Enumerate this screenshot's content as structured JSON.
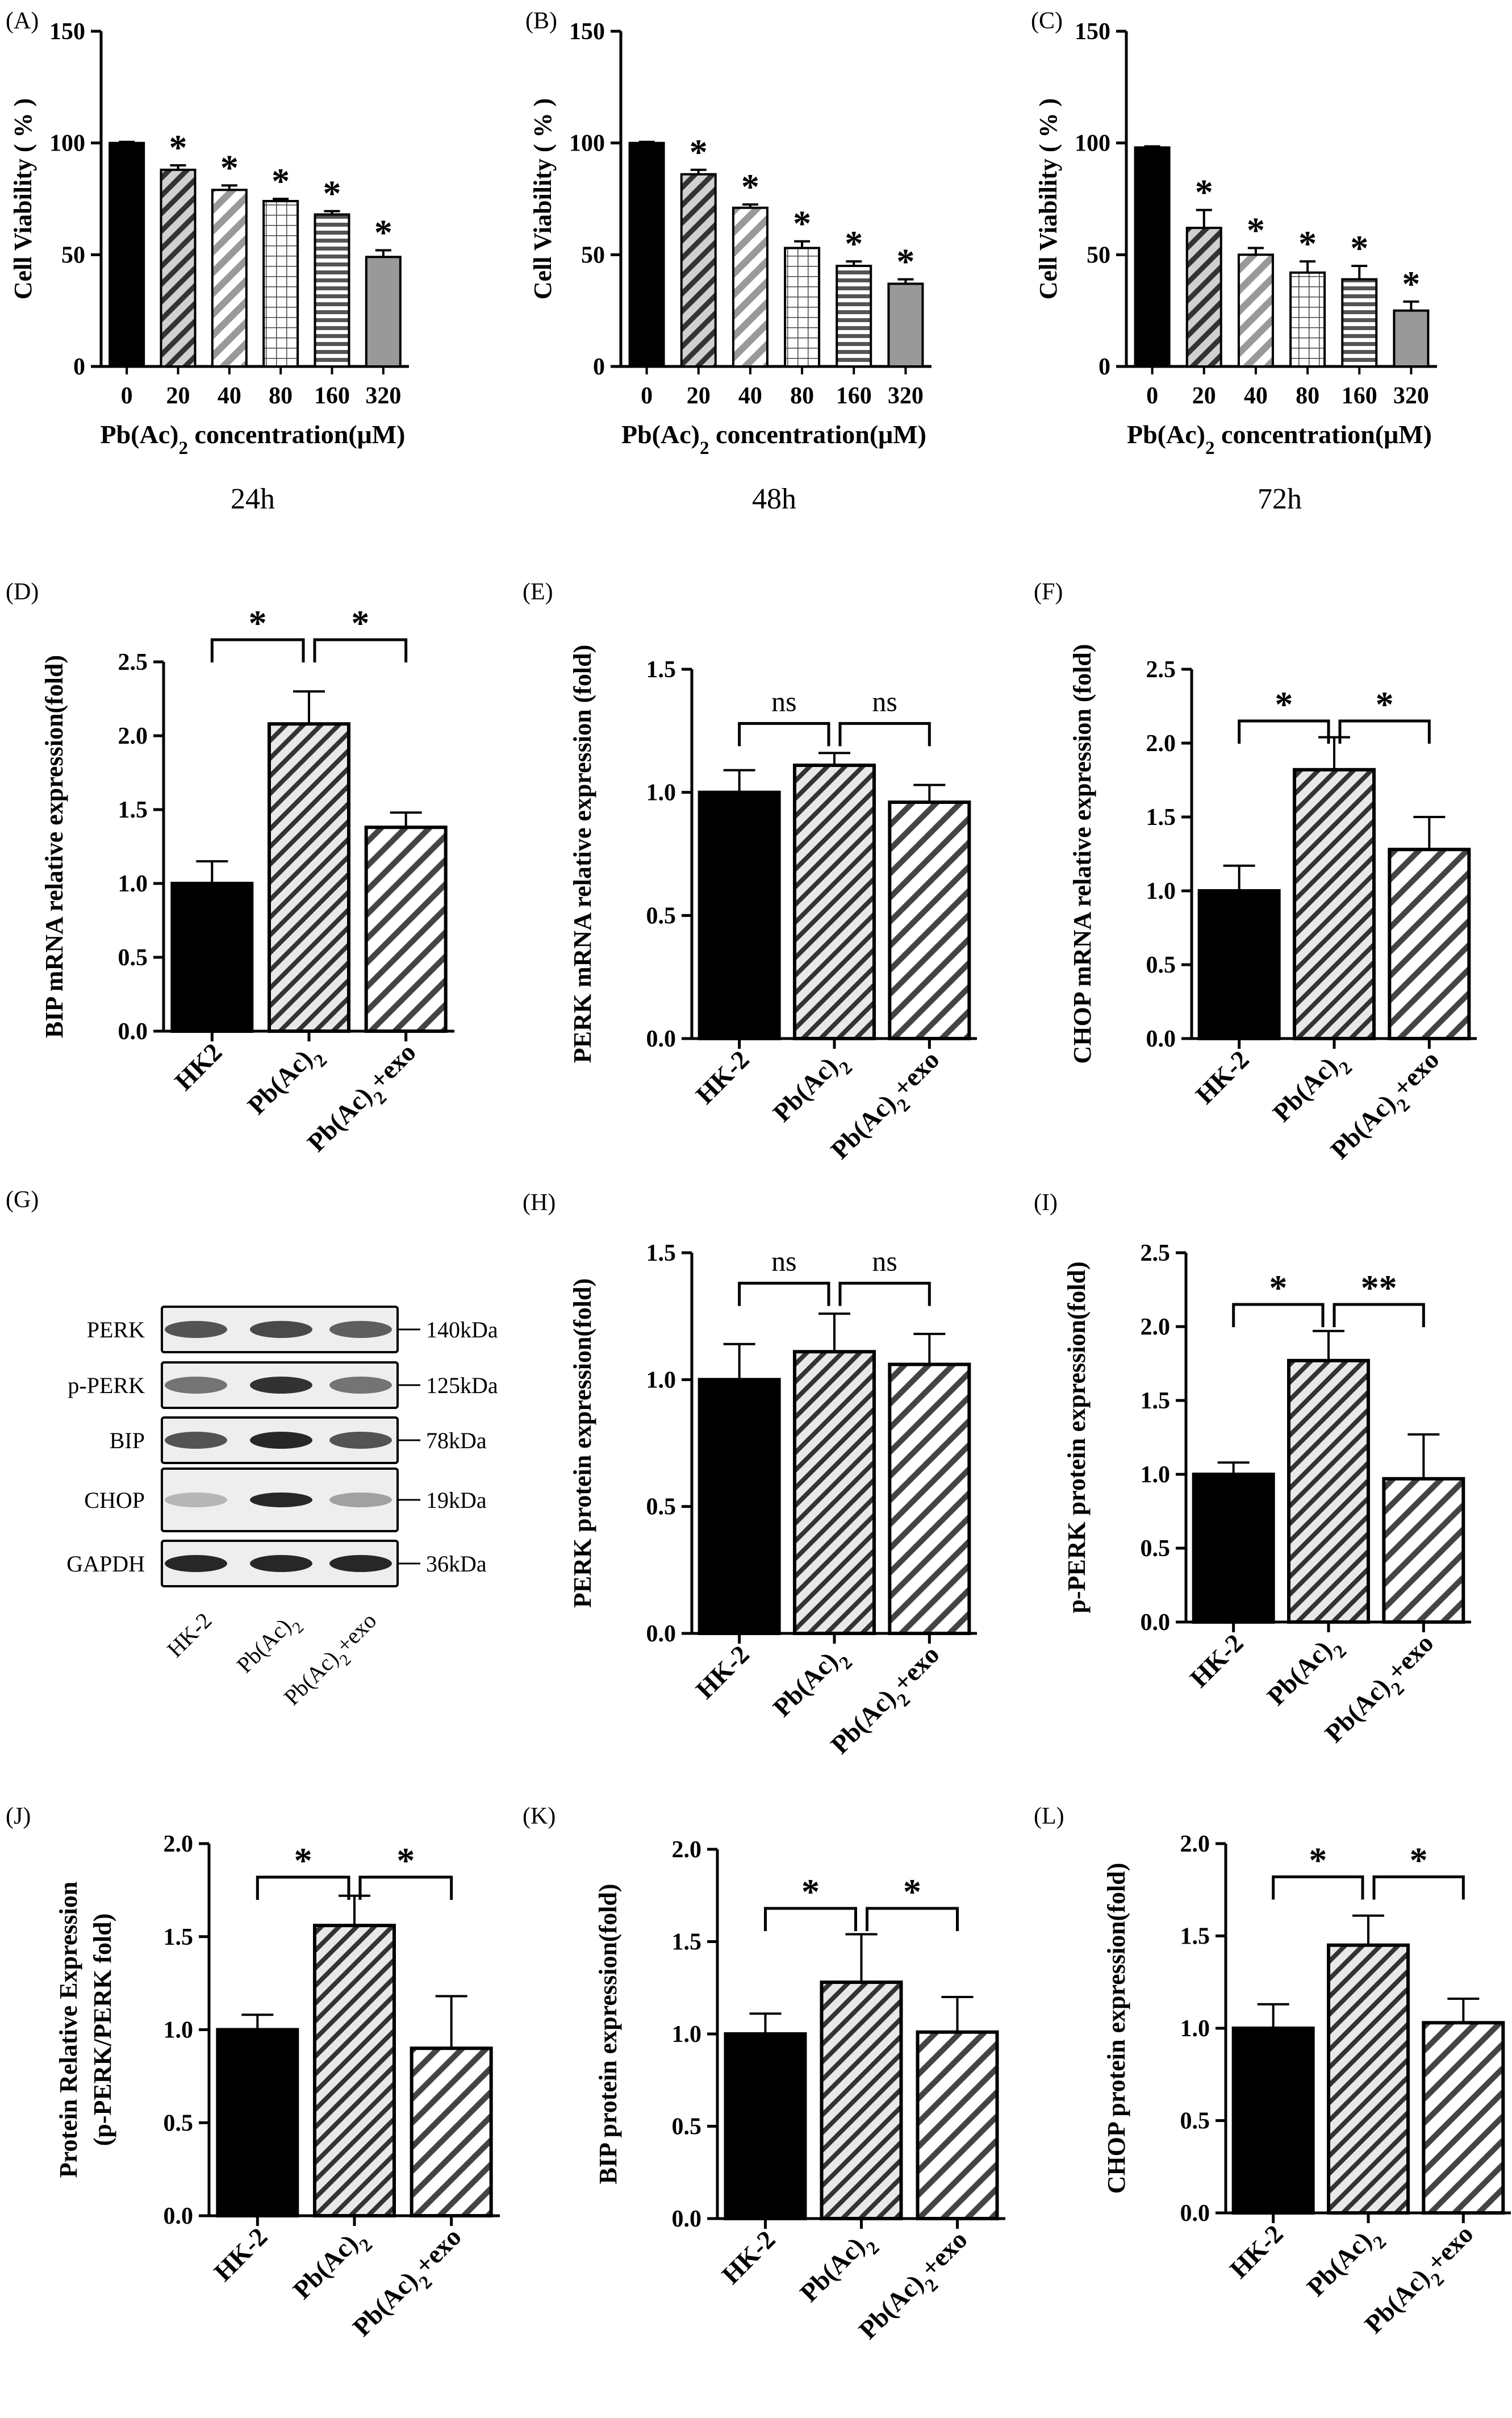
{
  "figure": {
    "blot_panel": {
      "label": "(G)",
      "proteins": [
        "PERK",
        "p-PERK",
        "BIP",
        "CHOP",
        "GAPDH"
      ],
      "weights": [
        "140kDa",
        "125kDa",
        "78kDa",
        "19kDa",
        "36kDa"
      ],
      "lanes": [
        "HK-2",
        "Pb(Ac)2",
        "Pb(Ac)2+exo"
      ]
    }
  },
  "chart_data": [
    {
      "panel": "(A)",
      "type": "bar",
      "time_label": "24h",
      "ylabel": "Cell Viability ( % )",
      "xlabel": "Pb(Ac)2 concentration(μM)",
      "categories": [
        "0",
        "20",
        "40",
        "80",
        "160",
        "320"
      ],
      "values": [
        100,
        88,
        79,
        74,
        68,
        49
      ],
      "errors": [
        0.5,
        2,
        2,
        1,
        1.5,
        3
      ],
      "significance": [
        "",
        "*",
        "*",
        "*",
        "*",
        "*"
      ],
      "ylim": [
        0,
        150
      ],
      "yticks": [
        "0",
        "50",
        "100",
        "150"
      ]
    },
    {
      "panel": "(B)",
      "type": "bar",
      "time_label": "48h",
      "ylabel": "Cell Viability ( % )",
      "xlabel": "Pb(Ac)2 concentration(μM)",
      "categories": [
        "0",
        "20",
        "40",
        "80",
        "160",
        "320"
      ],
      "values": [
        100,
        86,
        71,
        53,
        45,
        37
      ],
      "errors": [
        0.5,
        2,
        1.5,
        3,
        2,
        2
      ],
      "significance": [
        "",
        "*",
        "*",
        "*",
        "*",
        "*"
      ],
      "ylim": [
        0,
        150
      ],
      "yticks": [
        "0",
        "50",
        "100",
        "150"
      ]
    },
    {
      "panel": "(C)",
      "type": "bar",
      "time_label": "72h",
      "ylabel": "Cell Viability ( % )",
      "xlabel": "Pb(Ac)2 concentration(μM)",
      "categories": [
        "0",
        "20",
        "40",
        "80",
        "160",
        "320"
      ],
      "values": [
        98,
        62,
        50,
        42,
        39,
        25
      ],
      "errors": [
        0.5,
        8,
        3,
        5,
        6,
        4
      ],
      "significance": [
        "",
        "*",
        "*",
        "*",
        "*",
        "*"
      ],
      "ylim": [
        0,
        150
      ],
      "yticks": [
        "0",
        "50",
        "100",
        "150"
      ]
    },
    {
      "panel": "(D)",
      "type": "bar",
      "ylabel": "BIP mRNA relative expression(fold)",
      "categories": [
        "HK2",
        "Pb(Ac)2",
        "Pb(Ac)2+exo"
      ],
      "values": [
        1.0,
        2.08,
        1.38
      ],
      "errors": [
        0.15,
        0.22,
        0.1
      ],
      "brackets": [
        {
          "from": 0,
          "to": 1,
          "label": "*"
        },
        {
          "from": 1,
          "to": 2,
          "label": "*"
        }
      ],
      "bracket_level": 2.65,
      "ylim": [
        0,
        2.5
      ],
      "yticks": [
        "0.0",
        "0.5",
        "1.0",
        "1.5",
        "2.0",
        "2.5"
      ]
    },
    {
      "panel": "(E)",
      "type": "bar",
      "ylabel": "PERK mRNA relative expression (fold)",
      "categories": [
        "HK-2",
        "Pb(Ac)2",
        "Pb(Ac)2+exo"
      ],
      "values": [
        1.0,
        1.11,
        0.96
      ],
      "errors": [
        0.09,
        0.05,
        0.07
      ],
      "brackets": [
        {
          "from": 0,
          "to": 1,
          "label": "ns"
        },
        {
          "from": 1,
          "to": 2,
          "label": "ns"
        }
      ],
      "bracket_level": 1.28,
      "ylim": [
        0,
        1.5
      ],
      "yticks": [
        "0.0",
        "0.5",
        "1.0",
        "1.5"
      ]
    },
    {
      "panel": "(F)",
      "type": "bar",
      "ylabel": "CHOP mRNA relative expression (fold)",
      "categories": [
        "HK-2",
        "Pb(Ac)2",
        "Pb(Ac)2+exo"
      ],
      "values": [
        1.0,
        1.82,
        1.28
      ],
      "errors": [
        0.17,
        0.22,
        0.22
      ],
      "brackets": [
        {
          "from": 0,
          "to": 1,
          "label": "*"
        },
        {
          "from": 1,
          "to": 2,
          "label": "*"
        }
      ],
      "bracket_level": 2.15,
      "ylim": [
        0,
        2.5
      ],
      "yticks": [
        "0.0",
        "0.5",
        "1.0",
        "1.5",
        "2.0",
        "2.5"
      ]
    },
    {
      "panel": "(H)",
      "type": "bar",
      "ylabel": "PERK protein expression(fold)",
      "categories": [
        "HK-2",
        "Pb(Ac)2",
        "Pb(Ac)2+exo"
      ],
      "values": [
        1.0,
        1.11,
        1.06
      ],
      "errors": [
        0.14,
        0.15,
        0.12
      ],
      "brackets": [
        {
          "from": 0,
          "to": 1,
          "label": "ns"
        },
        {
          "from": 1,
          "to": 2,
          "label": "ns"
        }
      ],
      "bracket_level": 1.38,
      "ylim": [
        0,
        1.5
      ],
      "yticks": [
        "0.0",
        "0.5",
        "1.0",
        "1.5"
      ]
    },
    {
      "panel": "(I)",
      "type": "bar",
      "ylabel": "p-PERK protein expression(fold)",
      "categories": [
        "HK-2",
        "Pb(Ac)2",
        "Pb(Ac)2+exo"
      ],
      "values": [
        1.0,
        1.77,
        0.97
      ],
      "errors": [
        0.08,
        0.2,
        0.3
      ],
      "brackets": [
        {
          "from": 0,
          "to": 1,
          "label": "*"
        },
        {
          "from": 1,
          "to": 2,
          "label": "**"
        }
      ],
      "bracket_level": 2.15,
      "ylim": [
        0,
        2.5
      ],
      "yticks": [
        "0.0",
        "0.5",
        "1.0",
        "1.5",
        "2.0",
        "2.5"
      ]
    },
    {
      "panel": "(J)",
      "type": "bar",
      "ylabel": "Protein Relative Expression (p-PERK/PERK fold)",
      "ylabel_lines": [
        "Protein Relative Expression",
        "(p-PERK/PERK fold)"
      ],
      "categories": [
        "HK-2",
        "Pb(Ac)2",
        "Pb(Ac)2+exo"
      ],
      "values": [
        1.0,
        1.56,
        0.9
      ],
      "errors": [
        0.08,
        0.16,
        0.28
      ],
      "brackets": [
        {
          "from": 0,
          "to": 1,
          "label": "*"
        },
        {
          "from": 1,
          "to": 2,
          "label": "*"
        }
      ],
      "bracket_level": 1.82,
      "ylim": [
        0,
        2.0
      ],
      "yticks": [
        "0.0",
        "0.5",
        "1.0",
        "1.5",
        "2.0"
      ]
    },
    {
      "panel": "(K)",
      "type": "bar",
      "ylabel": "BIP protein expression(fold)",
      "categories": [
        "HK-2",
        "Pb(Ac)2",
        "Pb(Ac)2+exo"
      ],
      "values": [
        1.0,
        1.28,
        1.01
      ],
      "errors": [
        0.11,
        0.26,
        0.19
      ],
      "brackets": [
        {
          "from": 0,
          "to": 1,
          "label": "*"
        },
        {
          "from": 1,
          "to": 2,
          "label": "*"
        }
      ],
      "bracket_level": 1.68,
      "ylim": [
        0,
        2.0
      ],
      "yticks": [
        "0.0",
        "0.5",
        "1.0",
        "1.5",
        "2.0"
      ]
    },
    {
      "panel": "(L)",
      "type": "bar",
      "ylabel": "CHOP protein expression(fold)",
      "categories": [
        "HK-2",
        "Pb(Ac)2",
        "Pb(Ac)2+exo"
      ],
      "values": [
        1.0,
        1.45,
        1.03
      ],
      "errors": [
        0.13,
        0.16,
        0.13
      ],
      "brackets": [
        {
          "from": 0,
          "to": 1,
          "label": "*"
        },
        {
          "from": 1,
          "to": 2,
          "label": "*"
        }
      ],
      "bracket_level": 1.82,
      "ylim": [
        0,
        2.0
      ],
      "yticks": [
        "0.0",
        "0.5",
        "1.0",
        "1.5",
        "2.0"
      ]
    }
  ]
}
